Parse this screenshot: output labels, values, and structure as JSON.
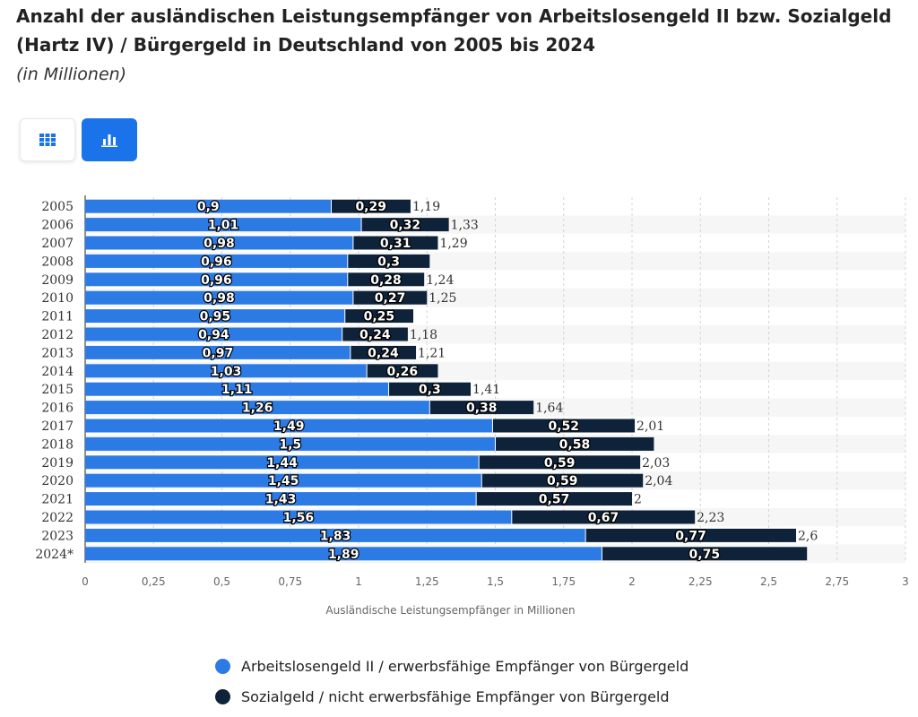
{
  "title": "Anzahl der ausländischen Leistungsempfänger von Arbeitslosengeld II bzw. Sozialgeld (Hartz IV) / Bürgergeld in Deutschland von 2005 bis 2024",
  "subtitle": "(in Millionen)",
  "controls": {
    "table_view_icon": "grid-icon",
    "bar_view_icon": "bar-chart-icon",
    "active_view": "bar"
  },
  "colors": {
    "series1": "#2c7be5",
    "series2": "#0e2339",
    "accent": "#1a73e8"
  },
  "chart_data": {
    "type": "bar",
    "orientation": "horizontal",
    "stacked": true,
    "categories": [
      "2005",
      "2006",
      "2007",
      "2008",
      "2009",
      "2010",
      "2011",
      "2012",
      "2013",
      "2014",
      "2015",
      "2016",
      "2017",
      "2018",
      "2019",
      "2020",
      "2021",
      "2022",
      "2023",
      "2024*"
    ],
    "series": [
      {
        "name": "Arbeitslosengeld II / erwerbsfähige Empfänger von Bürgergeld",
        "values": [
          0.9,
          1.01,
          0.98,
          0.96,
          0.96,
          0.98,
          0.95,
          0.94,
          0.97,
          1.03,
          1.11,
          1.26,
          1.49,
          1.5,
          1.44,
          1.45,
          1.43,
          1.56,
          1.83,
          1.89
        ]
      },
      {
        "name": "Sozialgeld / nicht erwerbsfähige Empfänger von Bürgergeld",
        "values": [
          0.29,
          0.32,
          0.31,
          0.3,
          0.28,
          0.27,
          0.25,
          0.24,
          0.24,
          0.26,
          0.3,
          0.38,
          0.52,
          0.58,
          0.59,
          0.59,
          0.57,
          0.67,
          0.77,
          0.75
        ]
      }
    ],
    "totals": [
      {
        "index": 0,
        "label": "1,19"
      },
      {
        "index": 1,
        "label": "1,33"
      },
      {
        "index": 2,
        "label": "1,29"
      },
      {
        "index": 4,
        "label": "1,24"
      },
      {
        "index": 5,
        "label": "1,25"
      },
      {
        "index": 7,
        "label": "1,18"
      },
      {
        "index": 8,
        "label": "1,21"
      },
      {
        "index": 10,
        "label": "1,41"
      },
      {
        "index": 11,
        "label": "1,64"
      },
      {
        "index": 12,
        "label": "2,01"
      },
      {
        "index": 14,
        "label": "2,03"
      },
      {
        "index": 15,
        "label": "2,04"
      },
      {
        "index": 16,
        "label": "2"
      },
      {
        "index": 17,
        "label": "2,23"
      },
      {
        "index": 18,
        "label": "2,6"
      }
    ],
    "xlim": [
      0,
      3
    ],
    "x_ticks": [
      "0",
      "0,25",
      "0,5",
      "0,75",
      "1",
      "1,25",
      "1,5",
      "1,75",
      "2",
      "2,25",
      "2,5",
      "2,75",
      "3"
    ],
    "xlabel": "Ausländische Leistungsempfänger in Millionen",
    "grid": true,
    "legend_position": "bottom"
  }
}
